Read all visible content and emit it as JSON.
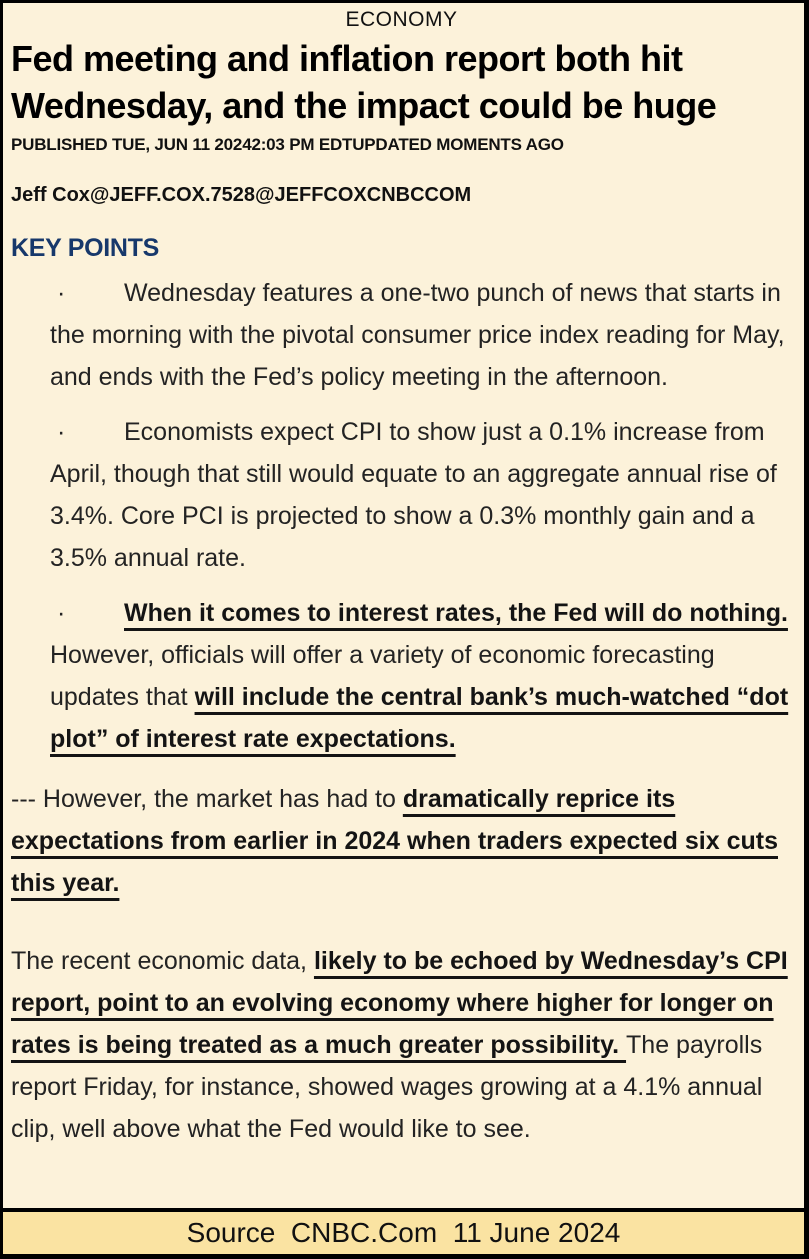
{
  "theme": {
    "page_background": "#FCF2DA",
    "footer_background": "#FAE3A2",
    "border_color": "#000000",
    "key_points_color": "#17386B",
    "body_text_color": "#232323"
  },
  "header": {
    "kicker": "ECONOMY",
    "headline": "Fed meeting and inflation report both hit Wednesday, and the impact could be huge",
    "published_line": "PUBLISHED TUE, JUN 11 20242:03 PM EDTUPDATED MOMENTS AGO",
    "byline": "Jeff Cox@JEFF.COX.7528@JEFFCOXCNBCCOM"
  },
  "key_points": {
    "title": "KEY POINTS",
    "bullet_char": "·"
  },
  "article": {
    "paragraphs": [
      {
        "kind": "bullet",
        "segments": [
          {
            "style": "normal",
            "text": "Wednesday features a one-two punch of news that starts in the morning with the pivotal consumer price index reading for May, and ends with the Fed’s policy meeting in the afternoon."
          }
        ]
      },
      {
        "kind": "bullet",
        "segments": [
          {
            "style": "normal",
            "text": "Economists expect CPI to show just a 0.1% increase from April, though that still would equate to an aggregate annual rise of 3.4%. Core PCI is projected to show a 0.3% monthly gain and a 3.5% annual rate."
          }
        ]
      },
      {
        "kind": "bullet",
        "segments": [
          {
            "style": "bold-underline",
            "text": "When it comes to interest rates, the Fed will do nothing."
          },
          {
            "style": "normal",
            "text": " However, officials will offer a variety of economic forecasting updates that "
          },
          {
            "style": "bold-underline",
            "text": "will include the central bank’s much-watched “dot plot” of interest rate expectations."
          }
        ]
      },
      {
        "kind": "plain",
        "segments": [
          {
            "style": "normal",
            "text": "--- However, the market has had to "
          },
          {
            "style": "bold-underline",
            "text": "dramatically reprice its expectations from earlier in 2024 when traders expected six cuts this year."
          }
        ]
      },
      {
        "kind": "plain",
        "gap_above": true,
        "segments": [
          {
            "style": "normal",
            "text": "The recent economic data, "
          },
          {
            "style": "bold-underline",
            "text": "likely to be echoed by Wednesday’s CPI report, point to an evolving economy where higher for longer on rates is being treated as a much greater possibility. "
          },
          {
            "style": "normal",
            "text": "The payrolls report Friday, for instance, showed wages growing at a 4.1% annual clip, well above what the Fed would like to see."
          }
        ]
      }
    ]
  },
  "footer": {
    "source_line": "Source  CNBC.Com  11 June 2024"
  }
}
